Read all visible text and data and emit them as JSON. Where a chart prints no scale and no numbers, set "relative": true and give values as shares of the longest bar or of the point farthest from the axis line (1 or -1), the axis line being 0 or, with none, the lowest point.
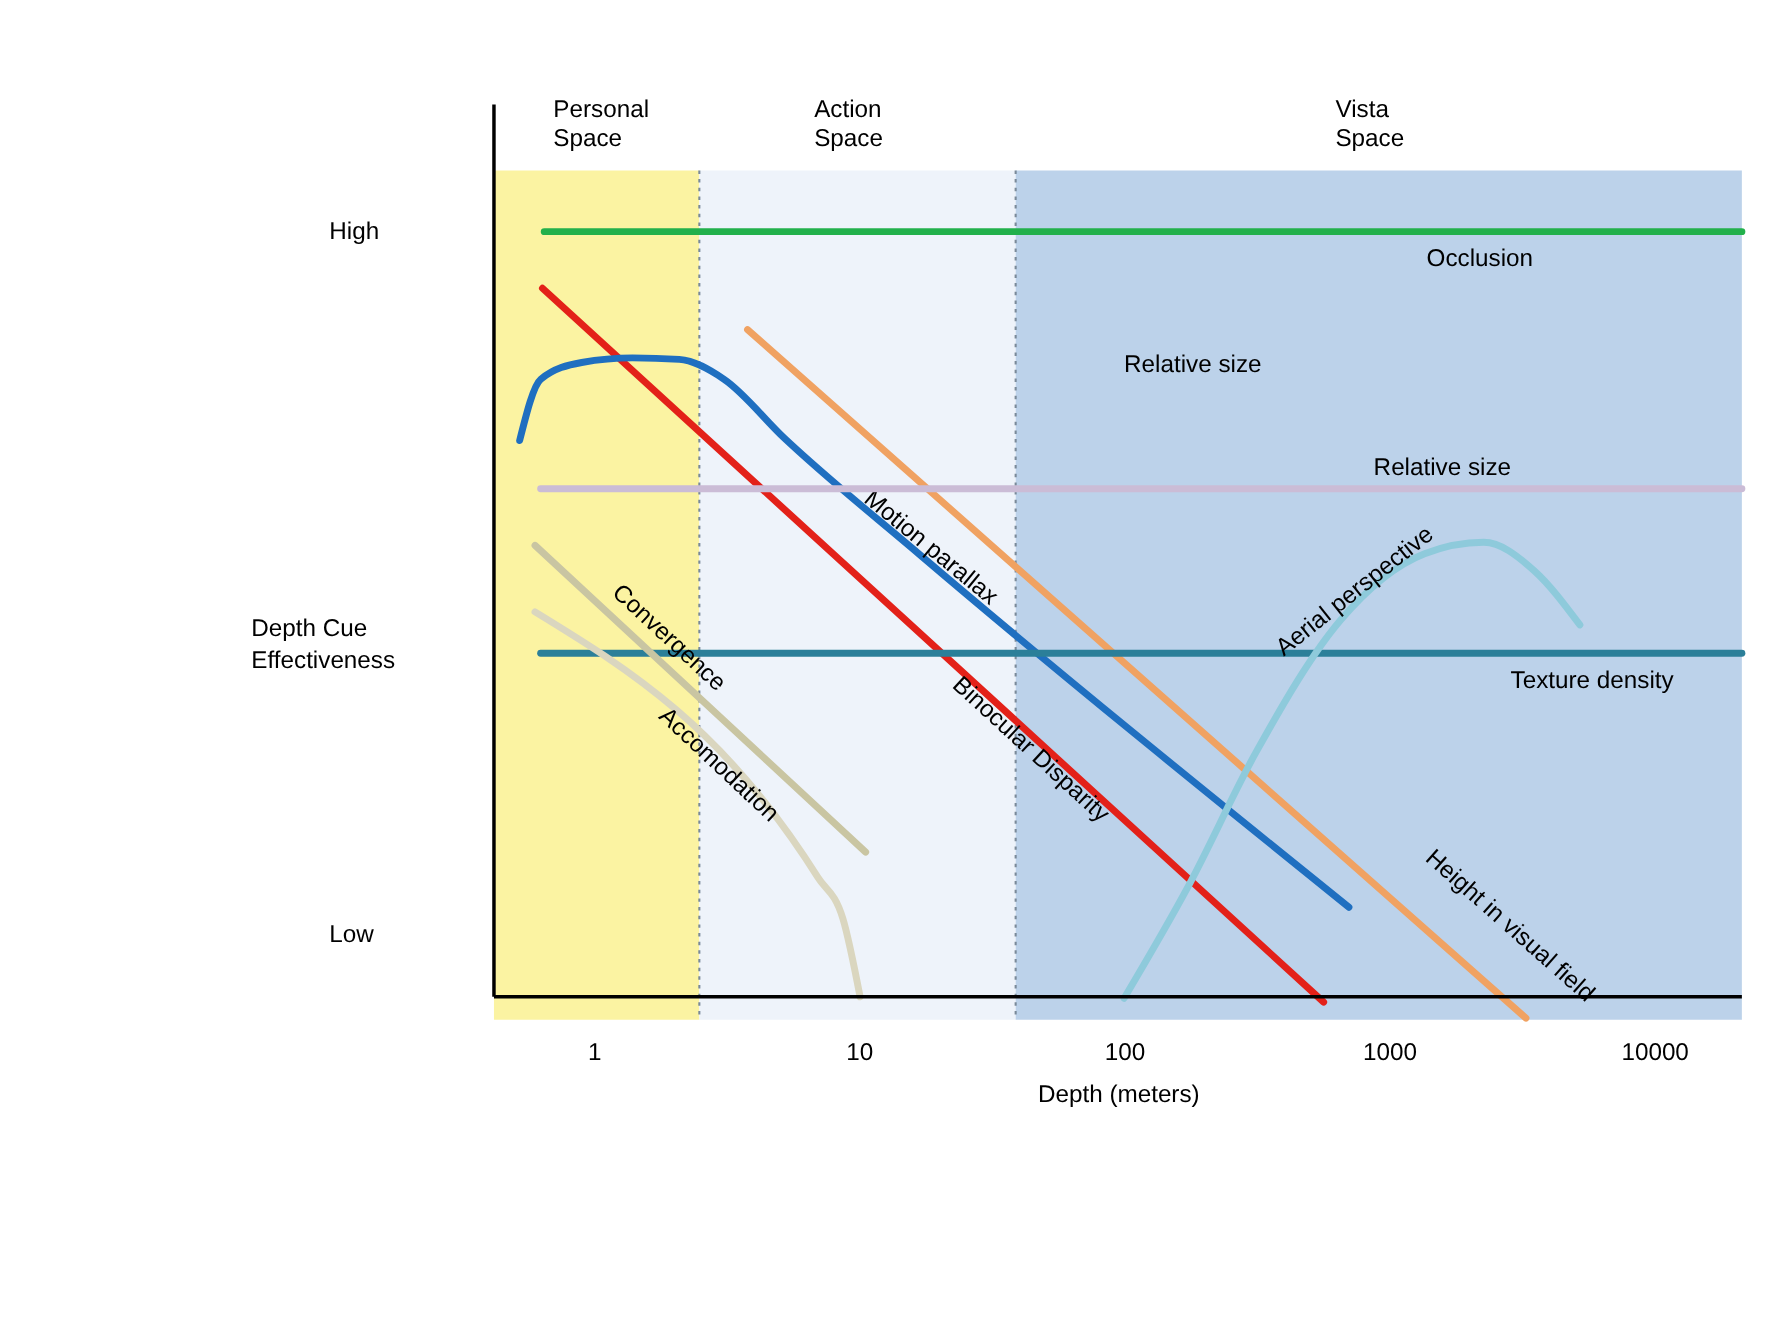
{
  "chart_data": {
    "type": "line",
    "relative": true,
    "xlabel": "Depth (meters)",
    "ylabel": "Depth Cue Effectiveness",
    "log": "x",
    "xlim": [
      0.42,
      21400
    ],
    "xticks": [
      1,
      10,
      100,
      1000,
      10000
    ],
    "grid": false,
    "marker": "none",
    "line_style": "solid",
    "series": [
      {
        "name": "Occlusion",
        "color": "#22b04b",
        "x": [
          0.65,
          21400
        ],
        "values": [
          1.0,
          1.0
        ]
      },
      {
        "name": "Binocular Disparity",
        "color": "#e32119",
        "x": [
          0.64,
          566
        ],
        "values": [
          0.926,
          -0.007
        ]
      },
      {
        "name": "Motion parallax",
        "color": "#1f6fc0",
        "x": [
          0.525,
          0.63,
          0.9,
          1.4,
          2.1,
          3.1,
          5.2,
          16.8,
          705
        ],
        "values": [
          0.727,
          0.807,
          0.829,
          0.835,
          0.833,
          0.807,
          0.731,
          0.579,
          0.117
        ]
      },
      {
        "name": "Height in visual field",
        "color": "#f0a262",
        "x": [
          3.8,
          3280
        ],
        "values": [
          0.872,
          -0.028
        ]
      },
      {
        "name": "Relative size",
        "color": "#cbbcd6",
        "x": [
          0.63,
          21400
        ],
        "values": [
          0.664,
          0.664
        ]
      },
      {
        "name": "Texture density",
        "color": "#2b7f99",
        "x": [
          0.63,
          21400
        ],
        "values": [
          0.449,
          0.449
        ]
      },
      {
        "name": "Aerial perspective",
        "color": "#8ecadb",
        "x": [
          100,
          175,
          314,
          655,
          1360,
          2275,
          3520,
          5240
        ],
        "values": [
          -0.002,
          0.145,
          0.319,
          0.492,
          0.579,
          0.594,
          0.557,
          0.486
        ]
      },
      {
        "name": "Convergence",
        "color": "#c9c5a2",
        "x": [
          0.6,
          10.6
        ],
        "values": [
          0.59,
          0.189
        ]
      },
      {
        "name": "Accomodation",
        "color": "#dad6bf",
        "x": [
          0.6,
          7.0,
          8.7,
          10.1
        ],
        "values": [
          0.503,
          0.156,
          0.102,
          0.0
        ]
      }
    ],
    "bands": [
      {
        "axis": "x",
        "from": 0.42,
        "to": 2.5,
        "label": "Personal Space",
        "color": "#fbf3a2"
      },
      {
        "axis": "x",
        "from": 2.5,
        "to": 39,
        "label": "Action Space",
        "color": "#eef3fa"
      },
      {
        "axis": "x",
        "from": 39,
        "to": 21400,
        "label": "Vista Space",
        "color": "#bcd2ea"
      }
    ],
    "ref_lines": [
      {
        "axis": "x",
        "value": 2.5,
        "color": "#7a8a99",
        "line_style": "dotted"
      },
      {
        "axis": "x",
        "value": 39,
        "color": "#7a8a99",
        "line_style": "dotted"
      }
    ],
    "annotations": [
      "Relative size",
      "High",
      "Low"
    ]
  }
}
